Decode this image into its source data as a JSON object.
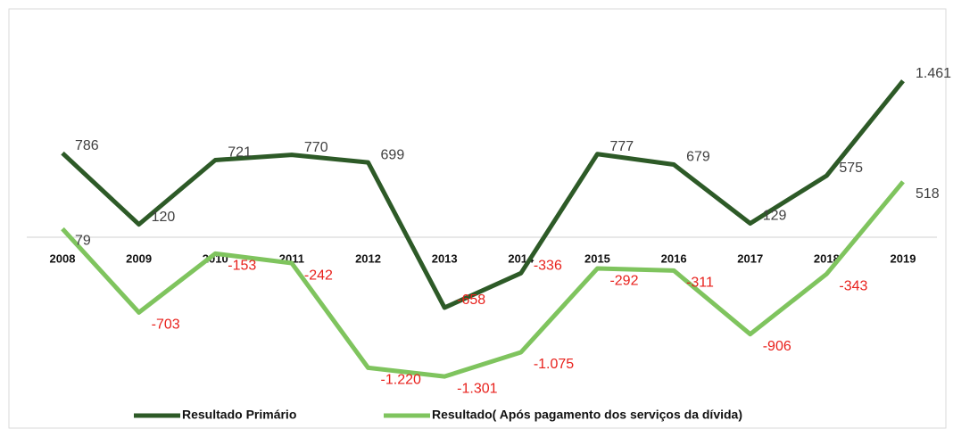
{
  "chart_data": {
    "type": "line",
    "categories": [
      "2008",
      "2009",
      "2010",
      "2011",
      "2012",
      "2013",
      "2014",
      "2015",
      "2016",
      "2017",
      "2018",
      "2019"
    ],
    "series": [
      {
        "name": "Resultado Primário",
        "color": "#2d5a27",
        "values": [
          786,
          120,
          721,
          770,
          699,
          -658,
          -336,
          777,
          679,
          129,
          575,
          1461
        ],
        "value_labels": [
          "786",
          "120",
          "721",
          "770",
          "699",
          "-658",
          "-336",
          "777",
          "679",
          "129",
          "575",
          "1.461"
        ]
      },
      {
        "name": "Resultado( Após pagamento dos serviços da dívida)",
        "color": "#7fc45e",
        "values": [
          79,
          -703,
          -153,
          -242,
          -1220,
          -1301,
          -1075,
          -292,
          -311,
          -906,
          -343,
          518
        ],
        "value_labels": [
          "79",
          "-703",
          "-153",
          "-242",
          "-1.220",
          "-1.301",
          "-1.075",
          "-292",
          "-311",
          "-906",
          "-343",
          "518"
        ]
      }
    ],
    "ylim": [
      -1500,
      1700
    ]
  }
}
